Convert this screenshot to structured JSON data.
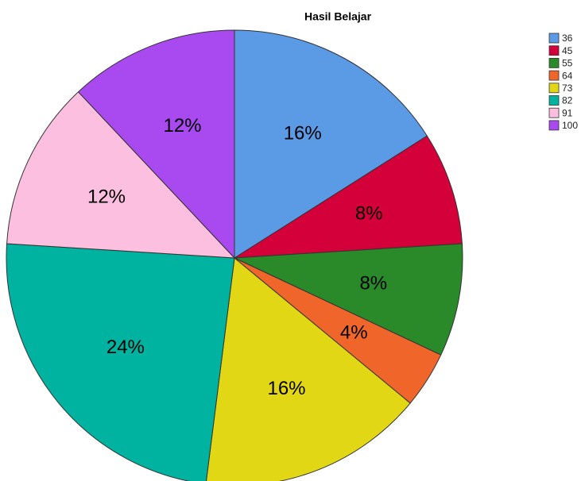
{
  "chart_data": {
    "type": "pie",
    "title": "Hasil Belajar",
    "categories": [
      "36",
      "45",
      "55",
      "64",
      "73",
      "82",
      "91",
      "100"
    ],
    "values": [
      16,
      8,
      8,
      4,
      16,
      24,
      12,
      12
    ],
    "value_labels": [
      "16%",
      "8%",
      "8%",
      "4%",
      "16%",
      "24%",
      "12%",
      "12%"
    ],
    "colors": [
      "#5b9be6",
      "#d4003a",
      "#2a8a2a",
      "#f0652a",
      "#e2d714",
      "#00b3a0",
      "#fdbfe0",
      "#a94af0"
    ],
    "legend": "top-right"
  }
}
